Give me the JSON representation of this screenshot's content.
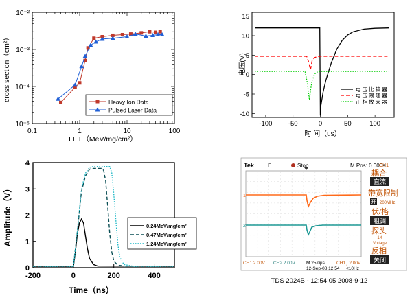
{
  "chart_data": [
    {
      "type": "scatter",
      "xscale": "log",
      "yscale": "log",
      "xlim": [
        0.1,
        100
      ],
      "ylim": [
        1e-05,
        0.01
      ],
      "xlabel": "LET（MeV/mg/cm²）",
      "ylabel": "cross section（cm²）",
      "xticks": [
        "0.1",
        "1",
        "10",
        "100"
      ],
      "yticks": [
        "10⁻⁵",
        "10⁻⁴",
        "10⁻³",
        "10⁻²"
      ],
      "legend_position": "lower-right",
      "series": [
        {
          "name": "Heavy Ion Data",
          "color": "#c0392b",
          "marker": "square",
          "x": [
            0.4,
            0.8,
            1.0,
            1.3,
            1.5,
            2.0,
            3.0,
            5.0,
            8.0,
            12.0,
            20.0,
            30.0,
            40.0,
            50.0
          ],
          "y": [
            3.7e-05,
            9.5e-05,
            0.000125,
            0.0005,
            0.0011,
            0.002,
            0.0022,
            0.0024,
            0.0025,
            0.0026,
            0.0028,
            0.003,
            0.0029,
            0.003
          ]
        },
        {
          "name": "Pulsed Laser Data",
          "color": "#1f5fd6",
          "marker": "triangle",
          "x": [
            0.35,
            0.8,
            1.1,
            1.3,
            1.7,
            2.2,
            3.0,
            5.0,
            10.0,
            15.0,
            25.0,
            35.0,
            45.0,
            55.0
          ],
          "y": [
            4.6e-05,
            0.00011,
            0.00035,
            0.00065,
            0.0013,
            0.0016,
            0.0019,
            0.002,
            0.0022,
            0.0026,
            0.0023,
            0.0024,
            0.0025,
            0.0025
          ]
        }
      ]
    },
    {
      "type": "line",
      "xlim": [
        -125,
        135
      ],
      "ylim": [
        -11,
        16
      ],
      "xlabel": "时 间（us）",
      "ylabel": "电压(V)",
      "xticks": [
        -100,
        -50,
        0,
        50,
        100
      ],
      "yticks": [
        -10,
        -5,
        0,
        5,
        10,
        15
      ],
      "legend_position": "bottom-right",
      "series": [
        {
          "name": "电 压 比 较 器",
          "color": "#000000",
          "dash": "solid",
          "x": [
            -120,
            -20,
            -1,
            0,
            1,
            5,
            10,
            20,
            30,
            40,
            50,
            60,
            80,
            100,
            125
          ],
          "y": [
            12,
            12,
            12,
            -10.5,
            -8,
            -4.5,
            -1.5,
            3,
            6.5,
            8.8,
            10.2,
            11,
            11.7,
            11.9,
            12
          ]
        },
        {
          "name": "电 压 跟 随 器",
          "color": "#ff0000",
          "dash": "dashed",
          "x": [
            -120,
            -25,
            -22,
            -18,
            -15,
            -10,
            -5,
            0,
            125
          ],
          "y": [
            4.7,
            4.7,
            3.5,
            1.3,
            3.6,
            4.4,
            4.6,
            4.7,
            4.7
          ]
        },
        {
          "name": "正 相 放 大 器",
          "color": "#00cc00",
          "dash": "dotted",
          "x": [
            -120,
            -28,
            -24,
            -20,
            -18,
            -15,
            -10,
            -5,
            0,
            125
          ],
          "y": [
            0.8,
            0.8,
            -2,
            -6.5,
            -4,
            -1.5,
            0.2,
            0.7,
            0.8,
            0.8
          ]
        }
      ]
    },
    {
      "type": "line",
      "xlim": [
        -200,
        500
      ],
      "ylim": [
        0,
        4
      ],
      "xlabel": "Time（ns）",
      "ylabel": "Amplitude（V）",
      "xticks": [
        -200,
        0,
        200,
        400
      ],
      "yticks": [
        0,
        1,
        2,
        3,
        4
      ],
      "legend_position": "right",
      "series": [
        {
          "name": "0.24MeV/mg/cm²",
          "color": "#000000",
          "dash": "solid",
          "x": [
            -200,
            0,
            10,
            20,
            30,
            40,
            50,
            60,
            70,
            80,
            100,
            120,
            500
          ],
          "y": [
            0.05,
            0.05,
            0.6,
            1.3,
            1.7,
            1.85,
            1.7,
            1.2,
            0.7,
            0.35,
            0.12,
            0.06,
            0.05
          ]
        },
        {
          "name": "0.47MeV/mg/cm²",
          "color": "#0b4f55",
          "dash": "dashed",
          "x": [
            -200,
            0,
            20,
            40,
            60,
            80,
            100,
            140,
            150,
            160,
            170,
            180,
            190,
            200,
            220,
            260,
            500
          ],
          "y": [
            0.05,
            0.05,
            1.4,
            2.9,
            3.5,
            3.75,
            3.78,
            3.78,
            3.7,
            3.3,
            2.3,
            1.3,
            0.6,
            0.25,
            0.1,
            0.05,
            0.05
          ]
        },
        {
          "name": "1.24MeV/mg/cm²",
          "color": "#1fb8c6",
          "dash": "dotted",
          "x": [
            -200,
            0,
            20,
            40,
            60,
            80,
            100,
            180,
            190,
            200,
            210,
            220,
            230,
            250,
            300,
            500
          ],
          "y": [
            0.05,
            0.05,
            1.4,
            3.0,
            3.6,
            3.82,
            3.85,
            3.85,
            3.6,
            2.8,
            1.8,
            0.9,
            0.4,
            0.12,
            0.05,
            0.05
          ]
        }
      ]
    }
  ],
  "scope": {
    "brand": "Tek",
    "trigger_symbol": "⎍",
    "status": "Stop",
    "mpos": "M Pos: 0.000s",
    "ch1_marker": "1",
    "ch2_marker": "2",
    "menu": {
      "header": "CH1",
      "coupling_label": "耦合",
      "coupling_value": "直流",
      "bw_label": "带宽限制",
      "bw_value": "开",
      "bw_sub": "200MHz",
      "vdiv_label": "伏/格",
      "vdiv_value": "粗调",
      "probe_label": "探头",
      "probe_sub1": "1X",
      "probe_sub2": "Voltage",
      "invert_label": "反相",
      "invert_value": "关闭"
    },
    "bottom": {
      "ch1": "CH1  2.00V",
      "ch2": "CH2  2.00V",
      "timebase": "M 25.0μs",
      "trig": "CH1  ∫  2.00V",
      "date": "12-Sep-08  12:54",
      "freq": "<10Hz"
    },
    "caption": "TDS 2024B - 12:54:05   2008-9-12",
    "trace1_color": "#ff6a1a",
    "trace2_color": "#1f9a96"
  }
}
